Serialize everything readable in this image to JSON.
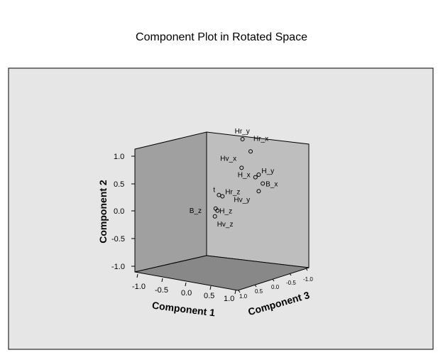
{
  "chart_data": {
    "type": "scatter",
    "title": "Component Plot in Rotated Space",
    "xlabel": "Component 1",
    "ylabel": "Component 2",
    "zlabel": "Component 3",
    "xticks": [
      "-1.0",
      "-0.5",
      "0.0",
      "0.5",
      "1.0"
    ],
    "yticks": [
      "1.0",
      "0.5",
      "0.0",
      "-0.5",
      "-1.0"
    ],
    "zticks": [
      "1.0",
      "0.5",
      "0.0",
      "-0.5",
      "-1.0"
    ],
    "xlim": [
      -1,
      1
    ],
    "ylim": [
      -1,
      1
    ],
    "zlim": [
      -1,
      1
    ],
    "points": [
      {
        "label": "Hr_y",
        "x": 0.6,
        "y": 1.0,
        "z": 0.2
      },
      {
        "label": "Hr_x",
        "x": 0.7,
        "y": 0.8,
        "z": 0.0
      },
      {
        "label": "Hv_x",
        "x": 0.55,
        "y": 0.5,
        "z": 0.1
      },
      {
        "label": "H_y",
        "x": 0.8,
        "y": 0.4,
        "z": -0.2
      },
      {
        "label": "H_x",
        "x": 0.75,
        "y": 0.35,
        "z": -0.15
      },
      {
        "label": "B_x",
        "x": 0.85,
        "y": 0.25,
        "z": -0.3
      },
      {
        "label": "Hv_y",
        "x": 0.8,
        "y": 0.1,
        "z": -0.2
      },
      {
        "label": "t",
        "x": 0.1,
        "y": 0.05,
        "z": 0.1
      },
      {
        "label": "Hr_z",
        "x": 0.2,
        "y": 0.0,
        "z": 0.2
      },
      {
        "label": "B_z",
        "x": 0.05,
        "y": -0.2,
        "z": 0.15
      },
      {
        "label": "H_z",
        "x": 0.1,
        "y": -0.25,
        "z": 0.2
      },
      {
        "label": "Hv_z",
        "x": 0.05,
        "y": -0.35,
        "z": 0.2
      }
    ]
  },
  "colors": {
    "frame_bg": "#e6e6e6",
    "left_wall": "#a0a0a0",
    "back_wall": "#bebebe",
    "floor": "#888888"
  }
}
